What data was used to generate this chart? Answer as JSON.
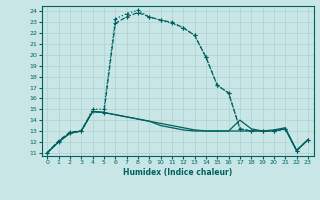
{
  "xlabel": "Humidex (Indice chaleur)",
  "xlim": [
    -0.5,
    23.5
  ],
  "ylim": [
    10.7,
    24.5
  ],
  "yticks": [
    11,
    12,
    13,
    14,
    15,
    16,
    17,
    18,
    19,
    20,
    21,
    22,
    23,
    24
  ],
  "xticks": [
    0,
    1,
    2,
    3,
    4,
    5,
    6,
    7,
    8,
    9,
    10,
    11,
    12,
    13,
    14,
    15,
    16,
    17,
    18,
    19,
    20,
    21,
    22,
    23
  ],
  "bg_color": "#c8e6e6",
  "grid_color": "#b0d0d0",
  "line_color": "#006060",
  "line1_x": [
    0,
    1,
    2,
    3,
    4,
    5,
    6,
    7,
    8,
    9,
    10,
    11,
    12,
    13,
    14,
    15,
    16,
    17,
    18,
    19,
    20,
    21,
    22,
    23
  ],
  "line1_y": [
    11.0,
    12.1,
    12.9,
    13.0,
    14.8,
    14.7,
    22.9,
    23.5,
    23.9,
    23.5,
    23.2,
    23.0,
    22.5,
    21.8,
    19.8,
    17.2,
    16.5,
    13.2,
    13.0,
    13.0,
    13.0,
    13.2,
    11.2,
    12.2
  ],
  "line2_x": [
    0,
    1,
    2,
    3,
    4,
    5,
    6,
    7,
    8,
    9,
    10,
    11,
    12,
    13,
    14,
    15,
    16,
    17,
    18,
    19,
    20,
    21,
    22,
    23
  ],
  "line2_y": [
    11.0,
    12.0,
    12.8,
    13.0,
    15.0,
    15.0,
    23.3,
    23.8,
    24.1,
    23.5,
    23.2,
    22.9,
    22.5,
    21.8,
    19.8,
    17.2,
    16.5,
    13.2,
    13.0,
    13.0,
    13.0,
    13.2,
    11.2,
    12.2
  ],
  "line3_x": [
    0,
    1,
    2,
    3,
    4,
    5,
    6,
    7,
    8,
    9,
    10,
    11,
    12,
    13,
    14,
    15,
    16,
    17,
    18,
    19,
    20,
    21,
    22,
    23
  ],
  "line3_y": [
    11.0,
    12.0,
    12.8,
    13.0,
    14.8,
    14.7,
    14.5,
    14.3,
    14.1,
    13.9,
    13.7,
    13.5,
    13.3,
    13.1,
    13.0,
    13.0,
    13.0,
    13.0,
    13.0,
    13.0,
    13.0,
    13.2,
    11.2,
    12.2
  ],
  "line4_x": [
    0,
    1,
    2,
    3,
    4,
    5,
    6,
    7,
    8,
    9,
    10,
    11,
    12,
    13,
    14,
    15,
    16,
    17,
    18,
    19,
    20,
    21,
    22,
    23
  ],
  "line4_y": [
    11.0,
    12.0,
    12.8,
    13.0,
    14.8,
    14.7,
    14.5,
    14.3,
    14.1,
    13.9,
    13.5,
    13.3,
    13.1,
    13.0,
    13.0,
    13.0,
    13.0,
    14.0,
    13.2,
    13.0,
    13.1,
    13.3,
    11.2,
    12.2
  ]
}
